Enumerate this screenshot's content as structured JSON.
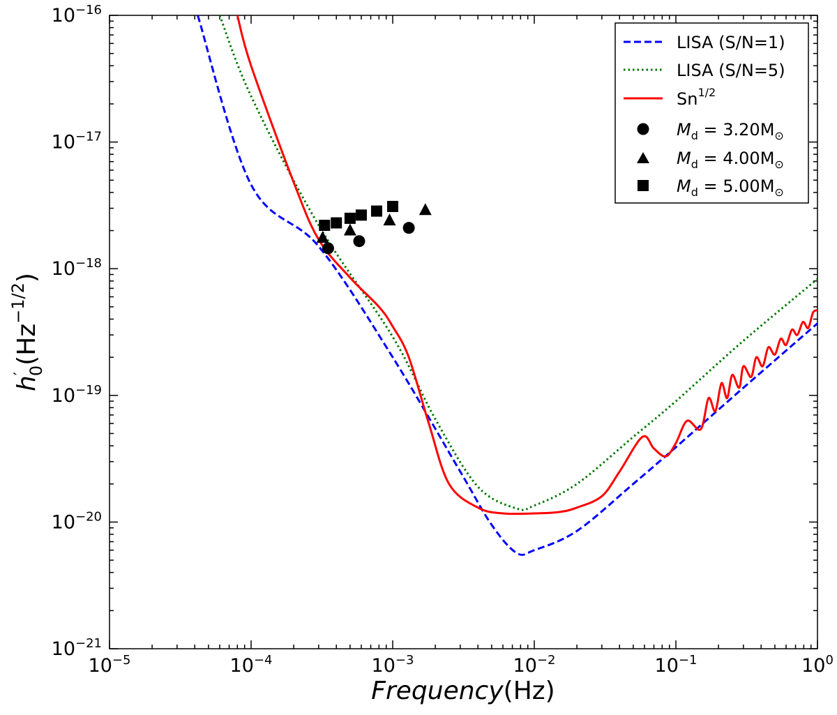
{
  "chart_data": {
    "type": "line",
    "xscale": "log",
    "yscale": "log",
    "xlim": [
      1e-05,
      1
    ],
    "ylim": [
      1e-21,
      1e-16
    ],
    "x_ticks": [
      {
        "base": "10",
        "exp": "−5"
      },
      {
        "base": "10",
        "exp": "−4"
      },
      {
        "base": "10",
        "exp": "−3"
      },
      {
        "base": "10",
        "exp": "−2"
      },
      {
        "base": "10",
        "exp": "−1"
      },
      {
        "base": "10",
        "exp": "0"
      }
    ],
    "y_ticks": [
      {
        "base": "10",
        "exp": "−21"
      },
      {
        "base": "10",
        "exp": "−20"
      },
      {
        "base": "10",
        "exp": "−19"
      },
      {
        "base": "10",
        "exp": "−18"
      },
      {
        "base": "10",
        "exp": "−17"
      },
      {
        "base": "10",
        "exp": "−16"
      }
    ],
    "xlabel": {
      "italic": "Frequency",
      "rest": "(Hz)"
    },
    "ylabel": {
      "symbol": "h",
      "prime": "′",
      "sub": "0",
      "rest": "(Hz",
      "exp": "−1/2",
      "close": ")"
    },
    "legend_position": "top-right",
    "series": [
      {
        "name": "LISA (S/N=1)",
        "style": "dashed",
        "color": "#0000ff",
        "x": [
          4.2e-05,
          0.0001,
          0.0003,
          0.001,
          0.003,
          0.005,
          0.0075,
          0.01,
          0.02,
          0.05,
          0.1,
          0.3,
          1
        ],
        "y": [
          1e-16,
          4.6e-18,
          1.5e-18,
          2e-19,
          2.5e-20,
          9.5e-21,
          5.7e-21,
          6e-21,
          8.5e-21,
          2e-20,
          3.9e-20,
          1.15e-19,
          3.7e-19
        ]
      },
      {
        "name": "LISA (S/N=5)",
        "style": "dotted",
        "color": "#007700",
        "x": [
          6e-05,
          0.0001,
          0.0003,
          0.001,
          0.002,
          0.004,
          0.0075,
          0.01,
          0.02,
          0.05,
          0.1,
          0.3,
          1
        ],
        "y": [
          1e-16,
          2.3e-17,
          2.2e-18,
          2.9e-19,
          6.5e-20,
          1.9e-20,
          1.28e-20,
          1.35e-20,
          2e-20,
          4.7e-20,
          9e-20,
          2.7e-19,
          8.3e-19
        ]
      },
      {
        "name": "Sn",
        "name_exp": "1/2",
        "style": "solid",
        "color": "#ff0000",
        "x": [
          8e-05,
          0.0001,
          0.0002,
          0.0003,
          0.0005,
          0.0008,
          0.001,
          0.0013,
          0.0018,
          0.0025,
          0.004,
          0.006,
          0.01,
          0.015,
          0.02,
          0.03,
          0.04,
          0.058,
          0.07,
          0.085,
          0.1,
          0.12,
          0.15,
          0.17,
          0.19,
          0.21,
          0.23,
          0.25,
          0.28,
          0.3,
          0.34,
          0.37,
          0.41,
          0.45,
          0.5,
          0.55,
          0.6,
          0.66,
          0.72,
          0.79,
          0.86,
          0.93,
          1
        ],
        "y": [
          1e-16,
          4e-17,
          4.8e-18,
          1.7e-18,
          8.5e-19,
          5e-19,
          3.5e-19,
          2e-19,
          6e-20,
          2e-20,
          1.3e-20,
          1.17e-20,
          1.17e-20,
          1.2e-20,
          1.3e-20,
          1.6e-20,
          2.5e-20,
          4.7e-20,
          3.8e-20,
          3.3e-20,
          4.2e-20,
          6.3e-20,
          5.4e-20,
          9.5e-20,
          7.5e-20,
          1.25e-19,
          9.5e-20,
          1.45e-19,
          1.15e-19,
          1.7e-19,
          1.4e-19,
          2e-19,
          1.7e-19,
          2.4e-19,
          2.1e-19,
          2.8e-19,
          2.5e-19,
          3.3e-19,
          3e-19,
          3.8e-19,
          3.4e-19,
          4.5e-19,
          4.7e-19
        ]
      }
    ],
    "scatter": [
      {
        "symbol_var": "M",
        "sub": "d",
        "value": "3.20",
        "unit": "M",
        "unit_sub": "⊙",
        "marker": "circle",
        "x": [
          0.00035,
          0.00058,
          0.0013
        ],
        "y": [
          1.45e-18,
          1.65e-18,
          2.1e-18
        ]
      },
      {
        "symbol_var": "M",
        "sub": "d",
        "value": "4.00",
        "unit": "M",
        "unit_sub": "⊙",
        "marker": "triangle",
        "x": [
          0.00032,
          0.0005,
          0.00095,
          0.0017
        ],
        "y": [
          1.75e-18,
          2e-18,
          2.4e-18,
          2.9e-18
        ]
      },
      {
        "symbol_var": "M",
        "sub": "d",
        "value": "5.00",
        "unit": "M",
        "unit_sub": "⊙",
        "marker": "square",
        "x": [
          0.00033,
          0.0004,
          0.0005,
          0.0006,
          0.00077,
          0.001
        ],
        "y": [
          2.2e-18,
          2.3e-18,
          2.5e-18,
          2.65e-18,
          2.85e-18,
          3.1e-18
        ]
      }
    ]
  }
}
